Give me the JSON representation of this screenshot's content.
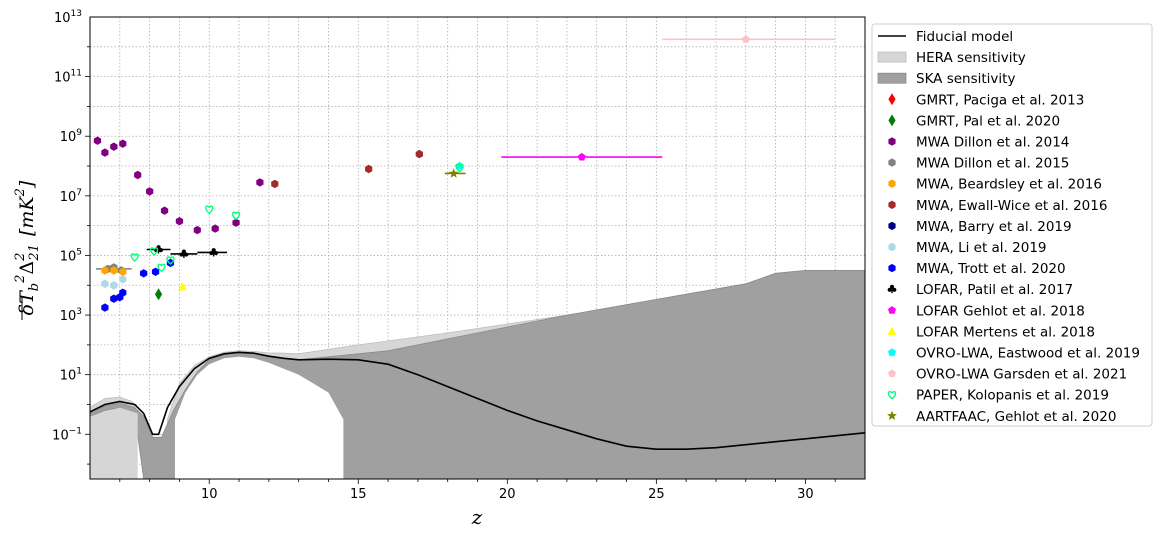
{
  "chart_data": {
    "type": "scatter",
    "xlabel": "z",
    "ylabel": "\\overline{\\delta T_b}^2 \\Delta^2_{21} [mK^2]",
    "ylabel_parts": {
      "main": "δT",
      "sub_b": "b",
      "sup2": "2",
      "delta": "Δ",
      "sup2b": "2",
      "sub21": "21",
      "unit": "[mK",
      "unit_sup": "2",
      "unit_close": "]"
    },
    "xlim": [
      6.0,
      32.0
    ],
    "ylim_log10": [
      -2.5,
      13
    ],
    "yscale": "log",
    "grid": true,
    "legend_location": "outside-right",
    "x_ticks": [
      {
        "value": 10,
        "label": "10"
      },
      {
        "value": 15,
        "label": "15"
      },
      {
        "value": 20,
        "label": "20"
      },
      {
        "value": 25,
        "label": "25"
      },
      {
        "value": 30,
        "label": "30"
      }
    ],
    "y_ticks": [
      {
        "exp": -1,
        "base": "10",
        "sup": "−1"
      },
      {
        "exp": 1,
        "base": "10",
        "sup": "1"
      },
      {
        "exp": 3,
        "base": "10",
        "sup": "3"
      },
      {
        "exp": 5,
        "base": "10",
        "sup": "5"
      },
      {
        "exp": 7,
        "base": "10",
        "sup": "7"
      },
      {
        "exp": 9,
        "base": "10",
        "sup": "9"
      },
      {
        "exp": 11,
        "base": "10",
        "sup": "11"
      },
      {
        "exp": 13,
        "base": "10",
        "sup": "13"
      }
    ],
    "fiducial_model": {
      "name": "Fiducial model",
      "color": "#000000",
      "x": [
        6.0,
        6.5,
        7.0,
        7.5,
        7.8,
        8.1,
        8.3,
        8.6,
        9.0,
        9.5,
        10.0,
        10.5,
        11.0,
        11.5,
        12.0,
        12.5,
        13.0,
        14.0,
        15.0,
        16.0,
        17.0,
        18.0,
        19.0,
        20.0,
        21.0,
        22.0,
        23.0,
        24.0,
        25.0,
        26.0,
        27.0,
        28.0,
        29.0,
        30.0,
        31.0,
        32.0
      ],
      "log10y": [
        -0.25,
        0.0,
        0.1,
        0.0,
        -0.3,
        -1.0,
        -1.0,
        -0.1,
        0.6,
        1.2,
        1.55,
        1.7,
        1.75,
        1.72,
        1.62,
        1.55,
        1.5,
        1.52,
        1.5,
        1.35,
        1.0,
        0.6,
        0.2,
        -0.2,
        -0.55,
        -0.85,
        -1.15,
        -1.4,
        -1.5,
        -1.5,
        -1.45,
        -1.35,
        -1.25,
        -1.15,
        -1.05,
        -0.95
      ]
    },
    "sensitivity_bands": [
      {
        "name": "HERA sensitivity",
        "color": "#d6d6d6",
        "edge": "#bdbdbd",
        "segments": [
          {
            "x": [
              6.0,
              6.5,
              7.0,
              7.4,
              7.5
            ],
            "upper": [
              -0.1,
              0.2,
              0.25,
              0.1,
              0.0
            ],
            "lower": [
              -2.5,
              -2.5,
              -2.5,
              -2.5,
              -2.5
            ]
          },
          {
            "x": [
              8.6,
              9.0,
              9.5,
              10.0,
              10.5,
              11.0,
              11.5,
              12.0,
              12.5,
              13.0,
              15.0,
              18.0,
              22.0,
              26.0,
              28.0,
              30.0,
              32.0
            ],
            "upper": [
              -0.5,
              0.7,
              1.3,
              1.6,
              1.75,
              1.8,
              1.78,
              1.73,
              1.72,
              1.7,
              2.0,
              2.4,
              3.0,
              3.6,
              3.8,
              3.9,
              3.9
            ],
            "lower": [
              -2.5,
              -2.5,
              -2.5,
              -2.5,
              -2.5,
              -2.5,
              -2.5,
              -2.5,
              -2.5,
              -2.5,
              -2.5,
              -2.5,
              -2.5,
              -2.5,
              -2.5,
              -2.5,
              -2.5
            ]
          },
          {
            "x": [
              9.5,
              10.0,
              10.5,
              11.0,
              11.5,
              12.0,
              12.5,
              12.8,
              13.0
            ],
            "upper": [
              0.8,
              1.2,
              1.4,
              1.5,
              1.45,
              1.3,
              1.0,
              0.6,
              0.3
            ],
            "lower": [
              -2.5,
              -2.5,
              -2.5,
              -2.5,
              -2.5,
              -2.5,
              -2.5,
              -2.5,
              -2.5
            ],
            "hole": true
          }
        ]
      },
      {
        "name": "SKA sensitivity",
        "color": "#a0a0a0",
        "edge": "#8a8a8a",
        "segments": [
          {
            "x": [
              6.0,
              6.5,
              7.0,
              7.5,
              7.8,
              8.1,
              8.4,
              8.8,
              9.2,
              9.6,
              10.0,
              10.5,
              11.0,
              11.5,
              12.0,
              12.5,
              13.0,
              14.0,
              15.0,
              16.0,
              18.0,
              20.0,
              22.0,
              24.0,
              26.0,
              28.0,
              29.0,
              30.0,
              32.0
            ],
            "upper": [
              -0.3,
              -0.05,
              0.05,
              -0.1,
              -0.4,
              -1.1,
              -1.1,
              -0.2,
              0.5,
              1.1,
              1.5,
              1.68,
              1.72,
              1.7,
              1.6,
              1.55,
              1.5,
              1.6,
              1.7,
              1.8,
              2.2,
              2.6,
              3.0,
              3.35,
              3.7,
              4.05,
              4.4,
              4.5,
              4.5
            ],
            "lower": [
              -0.4,
              -0.2,
              -0.1,
              -0.3,
              -2.5,
              -2.5,
              -2.5,
              -2.5,
              -2.5,
              -2.5,
              -2.5,
              -2.5,
              -2.5,
              -2.5,
              -2.5,
              -2.5,
              -2.5,
              -2.5,
              -2.5,
              -2.5,
              -2.5,
              -2.5,
              -2.5,
              -2.5,
              -2.5,
              -2.5,
              -2.5,
              -2.5,
              -2.5
            ]
          }
        ],
        "holes": [
          {
            "x": [
              6.0,
              7.0,
              7.6,
              7.6,
              6.0
            ],
            "upper": [
              -0.4,
              -0.1,
              -0.3,
              -2.5,
              -2.5
            ]
          },
          {
            "x": [
              8.85,
              9.2,
              9.6,
              10.0,
              10.5,
              11.0,
              11.5,
              12.0,
              12.5,
              13.0,
              13.5,
              14.0,
              14.5
            ],
            "upper": [
              -0.5,
              0.4,
              1.0,
              1.35,
              1.55,
              1.6,
              1.55,
              1.4,
              1.2,
              1.0,
              0.7,
              0.4,
              -0.5
            ]
          }
        ]
      }
    ],
    "series": [
      {
        "name": "GMRT, Paciga et al. 2013",
        "marker": "diamond",
        "color": "#ff0000",
        "filled": true,
        "points": []
      },
      {
        "name": "GMRT, Pal et al. 2020",
        "marker": "diamond",
        "color": "#008000",
        "filled": true,
        "points": [
          {
            "x": 8.3,
            "log10y": 3.7
          }
        ]
      },
      {
        "name": "MWA Dillon et al. 2014",
        "marker": "hexagon",
        "color": "#800080",
        "filled": true,
        "points": [
          {
            "x": 6.25,
            "log10y": 8.85
          },
          {
            "x": 6.5,
            "log10y": 8.45
          },
          {
            "x": 6.8,
            "log10y": 8.65
          },
          {
            "x": 7.1,
            "log10y": 8.75
          },
          {
            "x": 7.6,
            "log10y": 7.7
          },
          {
            "x": 8.0,
            "log10y": 7.15
          },
          {
            "x": 8.5,
            "log10y": 6.5
          },
          {
            "x": 9.0,
            "log10y": 6.15
          },
          {
            "x": 9.6,
            "log10y": 5.85
          },
          {
            "x": 10.2,
            "log10y": 5.9
          },
          {
            "x": 10.9,
            "log10y": 6.1
          },
          {
            "x": 11.7,
            "log10y": 7.45
          }
        ]
      },
      {
        "name": "MWA Dillon et al. 2015",
        "marker": "hexagon",
        "color": "#808080",
        "filled": true,
        "points": [
          {
            "x": 6.6,
            "log10y": 4.55
          },
          {
            "x": 6.8,
            "log10y": 4.6
          },
          {
            "x": 7.05,
            "log10y": 4.5
          }
        ]
      },
      {
        "name": "MWA, Beardsley et al. 2016",
        "marker": "hexagon",
        "color": "#ffa500",
        "filled": true,
        "points": [
          {
            "x": 6.5,
            "log10y": 4.5
          },
          {
            "x": 6.8,
            "log10y": 4.5
          },
          {
            "x": 7.1,
            "log10y": 4.45
          }
        ],
        "xerr_segment": {
          "x0": 6.2,
          "x1": 7.4,
          "log10y": 4.55
        }
      },
      {
        "name": "MWA, Ewall-Wice et al. 2016",
        "marker": "hexagon",
        "color": "#a52a2a",
        "filled": true,
        "points": [
          {
            "x": 12.2,
            "log10y": 7.4
          },
          {
            "x": 15.35,
            "log10y": 7.9
          },
          {
            "x": 17.05,
            "log10y": 8.4
          }
        ]
      },
      {
        "name": "MWA, Barry et al. 2019",
        "marker": "hexagon",
        "color": "#000080",
        "filled": true,
        "points": []
      },
      {
        "name": "MWA, Li et al. 2019",
        "marker": "hexagon",
        "color": "#add8e6",
        "filled": true,
        "points": [
          {
            "x": 6.5,
            "log10y": 4.05
          },
          {
            "x": 6.8,
            "log10y": 4.0
          },
          {
            "x": 7.1,
            "log10y": 4.2
          }
        ]
      },
      {
        "name": "MWA, Trott et al. 2020",
        "marker": "hexagon",
        "color": "#0000ff",
        "filled": true,
        "points": [
          {
            "x": 6.5,
            "log10y": 3.25
          },
          {
            "x": 6.8,
            "log10y": 3.55
          },
          {
            "x": 7.0,
            "log10y": 3.6
          },
          {
            "x": 7.1,
            "log10y": 3.75
          },
          {
            "x": 7.8,
            "log10y": 4.4
          },
          {
            "x": 8.2,
            "log10y": 4.45
          },
          {
            "x": 8.7,
            "log10y": 4.75
          }
        ]
      },
      {
        "name": "LOFAR, Patil et al. 2017",
        "marker": "club",
        "color": "#000000",
        "filled": true,
        "points": [
          {
            "x": 8.3,
            "log10y": 5.2,
            "x0": 7.9,
            "x1": 8.7
          },
          {
            "x": 9.15,
            "log10y": 5.05,
            "x0": 8.7,
            "x1": 9.6
          },
          {
            "x": 10.15,
            "log10y": 5.1,
            "x0": 9.6,
            "x1": 10.6
          }
        ]
      },
      {
        "name": "LOFAR Gehlot et al. 2018",
        "marker": "pentagon",
        "color": "#ff00ff",
        "filled": true,
        "points": [
          {
            "x": 22.5,
            "log10y": 8.3,
            "x0": 19.8,
            "x1": 25.2
          }
        ]
      },
      {
        "name": "LOFAR Mertens et al. 2018",
        "marker": "triangle",
        "color": "#ffff00",
        "filled": true,
        "points": [
          {
            "x": 9.1,
            "log10y": 3.95
          }
        ]
      },
      {
        "name": "OVRO-LWA, Eastwood et al. 2019",
        "marker": "pentagon",
        "color": "#00ffff",
        "filled": true,
        "points": [
          {
            "x": 18.4,
            "log10y": 8.0
          }
        ]
      },
      {
        "name": "OVRO-LWA Garsden et al. 2021",
        "marker": "pentagon",
        "color": "#ffc0cb",
        "filled": true,
        "points": [
          {
            "x": 28.0,
            "log10y": 12.25,
            "x0": 25.2,
            "x1": 31.0
          }
        ]
      },
      {
        "name": "PAPER, Kolopanis et al. 2019",
        "marker": "heart",
        "color": "#00ff7f",
        "filled": false,
        "points": [
          {
            "x": 7.5,
            "log10y": 4.95
          },
          {
            "x": 8.15,
            "log10y": 5.15
          },
          {
            "x": 8.4,
            "log10y": 4.6
          },
          {
            "x": 8.7,
            "log10y": 4.85
          },
          {
            "x": 10.0,
            "log10y": 6.55
          },
          {
            "x": 10.9,
            "log10y": 6.35
          },
          {
            "x": 18.4,
            "log10y": 7.95
          }
        ]
      },
      {
        "name": "AARTFAAC, Gehlot et al. 2020",
        "marker": "star",
        "color": "#808000",
        "filled": true,
        "points": [
          {
            "x": 18.2,
            "log10y": 7.75,
            "x0": 17.9,
            "x1": 18.6
          }
        ]
      }
    ]
  }
}
